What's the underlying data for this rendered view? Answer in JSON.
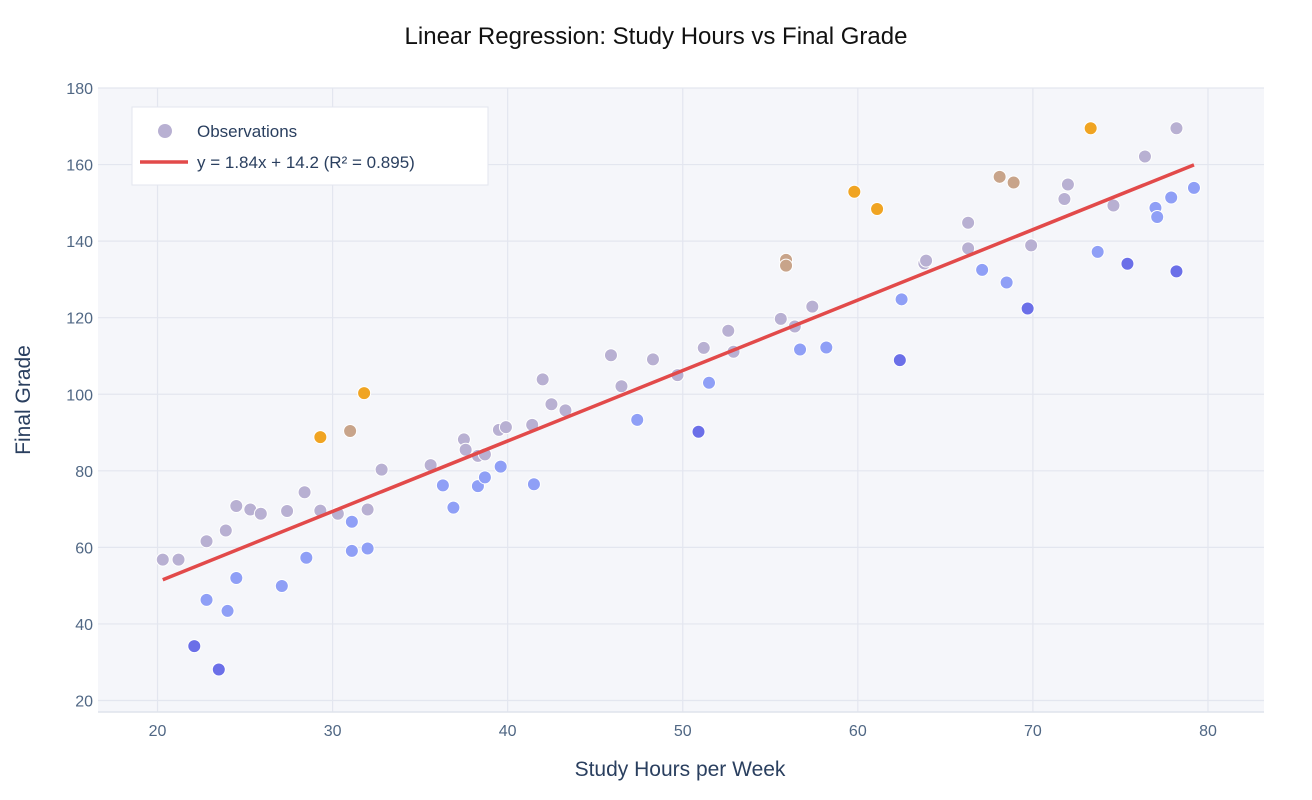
{
  "chart_data": {
    "type": "scatter",
    "title": "Linear Regression: Study Hours vs Final Grade",
    "xlabel": "Study Hours per Week",
    "ylabel": "Final Grade",
    "xlim": [
      16.6,
      83.2
    ],
    "ylim": [
      17,
      180
    ],
    "x_ticks": [
      20,
      30,
      40,
      50,
      60,
      70,
      80
    ],
    "y_ticks": [
      20,
      40,
      60,
      80,
      100,
      120,
      140,
      160,
      180
    ],
    "grid": true,
    "legend_position": "top-left",
    "colors": {
      "plot_bg": "#f5f6fa",
      "grid": "#e3e6ef",
      "fit_line": "#e24a4a",
      "legend_marker": "#b8b0d2",
      "above_strong": "#f0a422",
      "above_mid": "#c8a48a",
      "neutral": "#b8b0d2",
      "below": "#8f9ff6",
      "below_strong": "#6b6fe8"
    },
    "legend": [
      {
        "label": "Observations",
        "kind": "marker"
      },
      {
        "label": "y = 1.84x + 14.2  (R² = 0.895)",
        "kind": "line"
      }
    ],
    "fit": {
      "slope": 1.84,
      "intercept": 14.2,
      "r2": 0.895,
      "x_range": [
        20.3,
        79.2
      ]
    },
    "series": [
      {
        "name": "Observations",
        "points": [
          {
            "x": 20.3,
            "y": 56.8
          },
          {
            "x": 21.2,
            "y": 56.8
          },
          {
            "x": 22.1,
            "y": 34.2
          },
          {
            "x": 22.8,
            "y": 61.6
          },
          {
            "x": 22.8,
            "y": 46.3
          },
          {
            "x": 23.5,
            "y": 28.1
          },
          {
            "x": 23.9,
            "y": 64.4
          },
          {
            "x": 24.0,
            "y": 43.4
          },
          {
            "x": 24.5,
            "y": 70.8
          },
          {
            "x": 24.5,
            "y": 52.0
          },
          {
            "x": 25.3,
            "y": 69.9
          },
          {
            "x": 25.9,
            "y": 68.8
          },
          {
            "x": 27.1,
            "y": 49.9
          },
          {
            "x": 27.4,
            "y": 69.5
          },
          {
            "x": 28.4,
            "y": 74.4
          },
          {
            "x": 28.5,
            "y": 57.3
          },
          {
            "x": 29.3,
            "y": 69.6
          },
          {
            "x": 29.3,
            "y": 88.8
          },
          {
            "x": 30.3,
            "y": 68.8
          },
          {
            "x": 31.0,
            "y": 90.4
          },
          {
            "x": 31.1,
            "y": 66.7
          },
          {
            "x": 31.1,
            "y": 59.1
          },
          {
            "x": 31.8,
            "y": 100.3
          },
          {
            "x": 32.0,
            "y": 69.9
          },
          {
            "x": 32.0,
            "y": 59.7
          },
          {
            "x": 32.8,
            "y": 80.3
          },
          {
            "x": 35.6,
            "y": 81.5
          },
          {
            "x": 36.3,
            "y": 76.2
          },
          {
            "x": 36.9,
            "y": 70.4
          },
          {
            "x": 37.5,
            "y": 88.2
          },
          {
            "x": 37.6,
            "y": 85.5
          },
          {
            "x": 38.3,
            "y": 83.9
          },
          {
            "x": 38.3,
            "y": 76.0
          },
          {
            "x": 38.7,
            "y": 84.3
          },
          {
            "x": 38.7,
            "y": 78.3
          },
          {
            "x": 39.5,
            "y": 90.7
          },
          {
            "x": 39.6,
            "y": 81.1
          },
          {
            "x": 39.9,
            "y": 91.4
          },
          {
            "x": 41.4,
            "y": 92.0
          },
          {
            "x": 41.5,
            "y": 76.5
          },
          {
            "x": 42.0,
            "y": 103.9
          },
          {
            "x": 42.5,
            "y": 97.4
          },
          {
            "x": 43.3,
            "y": 95.8
          },
          {
            "x": 45.9,
            "y": 110.2
          },
          {
            "x": 46.5,
            "y": 102.1
          },
          {
            "x": 47.4,
            "y": 93.3
          },
          {
            "x": 48.3,
            "y": 109.1
          },
          {
            "x": 49.7,
            "y": 105.0
          },
          {
            "x": 50.9,
            "y": 90.2
          },
          {
            "x": 51.2,
            "y": 112.1
          },
          {
            "x": 51.5,
            "y": 103.0
          },
          {
            "x": 52.6,
            "y": 116.6
          },
          {
            "x": 52.9,
            "y": 111.1
          },
          {
            "x": 55.6,
            "y": 119.7
          },
          {
            "x": 55.9,
            "y": 135.1
          },
          {
            "x": 55.9,
            "y": 133.6
          },
          {
            "x": 56.4,
            "y": 117.7
          },
          {
            "x": 56.7,
            "y": 111.7
          },
          {
            "x": 57.4,
            "y": 122.9
          },
          {
            "x": 58.2,
            "y": 112.2
          },
          {
            "x": 59.8,
            "y": 152.9
          },
          {
            "x": 61.1,
            "y": 148.4
          },
          {
            "x": 62.5,
            "y": 124.8
          },
          {
            "x": 62.4,
            "y": 108.9
          },
          {
            "x": 63.8,
            "y": 134.2
          },
          {
            "x": 63.9,
            "y": 134.9
          },
          {
            "x": 66.3,
            "y": 138.1
          },
          {
            "x": 66.3,
            "y": 144.8
          },
          {
            "x": 67.1,
            "y": 132.5
          },
          {
            "x": 68.1,
            "y": 156.8
          },
          {
            "x": 68.5,
            "y": 129.2
          },
          {
            "x": 68.9,
            "y": 155.3
          },
          {
            "x": 69.7,
            "y": 122.4
          },
          {
            "x": 69.9,
            "y": 138.9
          },
          {
            "x": 71.8,
            "y": 151.0
          },
          {
            "x": 72.0,
            "y": 154.8
          },
          {
            "x": 73.3,
            "y": 169.5
          },
          {
            "x": 73.7,
            "y": 137.2
          },
          {
            "x": 74.6,
            "y": 149.3
          },
          {
            "x": 75.4,
            "y": 134.1
          },
          {
            "x": 76.4,
            "y": 162.1
          },
          {
            "x": 77.0,
            "y": 148.7
          },
          {
            "x": 77.1,
            "y": 146.3
          },
          {
            "x": 77.9,
            "y": 151.4
          },
          {
            "x": 78.2,
            "y": 169.5
          },
          {
            "x": 78.2,
            "y": 132.1
          },
          {
            "x": 79.2,
            "y": 153.9
          }
        ]
      }
    ]
  }
}
